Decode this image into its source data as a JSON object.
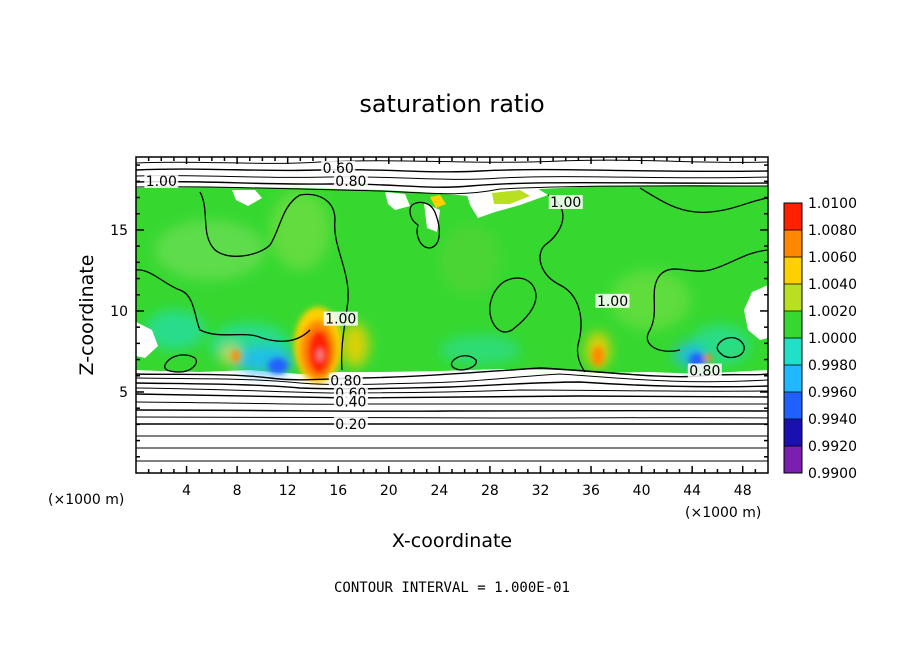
{
  "chart_data": {
    "type": "heatmap",
    "title": "saturation ratio",
    "xlabel": "X-coordinate",
    "ylabel": "Z-coordinate",
    "x_unit": "(×1000 m)",
    "y_unit": "(×1000 m)",
    "xlim": [
      0,
      50
    ],
    "ylim": [
      0,
      19.5
    ],
    "x_ticks": [
      4,
      8,
      12,
      16,
      20,
      24,
      28,
      32,
      36,
      40,
      44,
      48
    ],
    "y_ticks": [
      5,
      10,
      15
    ],
    "colorbar": {
      "levels": [
        0.99,
        0.992,
        0.994,
        0.996,
        0.998,
        1.0,
        1.002,
        1.004,
        1.006,
        1.008,
        1.01
      ],
      "labels": [
        "0.9900",
        "0.9920",
        "0.9940",
        "0.9960",
        "0.9980",
        "1.0000",
        "1.0020",
        "1.0040",
        "1.0060",
        "1.0080",
        "1.0100"
      ],
      "colors": [
        "#7a1fb0",
        "#1a10b0",
        "#2060ff",
        "#20b8ff",
        "#20e0c8",
        "#36d830",
        "#b8e020",
        "#ffd000",
        "#ff8800",
        "#ff2000",
        "#f08a8a"
      ]
    },
    "contour_labels": [
      {
        "text": "0.60",
        "x": 16.0,
        "z": 18.7
      },
      {
        "text": "0.80",
        "x": 17.0,
        "z": 17.9
      },
      {
        "text": "1.00",
        "x": 2.0,
        "z": 17.9
      },
      {
        "text": "1.00",
        "x": 34.0,
        "z": 16.6
      },
      {
        "text": "1.00",
        "x": 16.2,
        "z": 9.4
      },
      {
        "text": "1.00",
        "x": 37.7,
        "z": 10.5
      },
      {
        "text": "0.80",
        "x": 16.6,
        "z": 5.6
      },
      {
        "text": "0.60",
        "x": 17.0,
        "z": 4.8
      },
      {
        "text": "0.40",
        "x": 17.0,
        "z": 4.3
      },
      {
        "text": "0.20",
        "x": 17.0,
        "z": 2.9
      },
      {
        "text": "0.80",
        "x": 45.0,
        "z": 6.2
      }
    ],
    "features": [
      {
        "name": "moist layer",
        "z_range": [
          6.0,
          18.0
        ],
        "value": 1.0
      },
      {
        "name": "supersaturated plume",
        "x": 14.5,
        "z": 7.5,
        "value": 1.009
      },
      {
        "name": "subsaturated pocket",
        "x": 11.5,
        "z": 6.5,
        "value": 0.994
      },
      {
        "name": "supersaturated plume",
        "x": 35.5,
        "z": 7.0,
        "value": 1.004
      },
      {
        "name": "subsaturated pocket",
        "x": 43.5,
        "z": 7.0,
        "value": 0.993
      }
    ],
    "grid": false,
    "legend_placement": "right"
  },
  "note": "CONTOUR INTERVAL = 1.000E-01"
}
